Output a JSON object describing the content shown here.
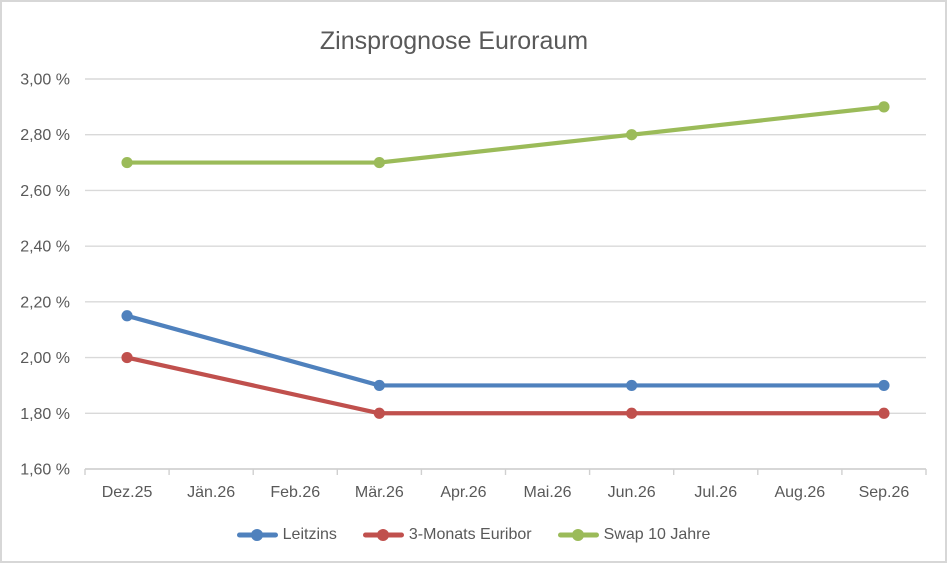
{
  "chart_data": {
    "type": "line",
    "title": "Zinsprognose Euroraum",
    "categories": [
      "Dez.25",
      "Jän.26",
      "Feb.26",
      "Mär.26",
      "Apr.26",
      "Mai.26",
      "Jun.26",
      "Jul.26",
      "Aug.26",
      "Sep.26"
    ],
    "series": [
      {
        "name": "Leitzins",
        "color": "#4F81BD",
        "values": [
          2.15,
          null,
          null,
          1.9,
          null,
          null,
          1.9,
          null,
          null,
          1.9
        ]
      },
      {
        "name": "3-Monats Euribor",
        "color": "#C0504D",
        "values": [
          2.0,
          null,
          null,
          1.8,
          null,
          null,
          1.8,
          null,
          null,
          1.8
        ]
      },
      {
        "name": "Swap 10 Jahre",
        "color": "#9BBB59",
        "values": [
          2.7,
          null,
          null,
          2.7,
          null,
          null,
          2.8,
          null,
          null,
          2.9
        ]
      }
    ],
    "y_axis": {
      "min": 1.6,
      "max": 3.0,
      "step": 0.2,
      "tick_labels": [
        "3,00 %",
        "2,80 %",
        "2,60 %",
        "2,40 %",
        "2,20 %",
        "2,00 %",
        "1,80 %",
        "1,60 %"
      ]
    },
    "legend_position": "bottom",
    "grid": true,
    "style": {
      "text_color": "#595959",
      "gridline_color": "#d9d9d9",
      "axis_color": "#d0d0d0",
      "background": "#ffffff"
    }
  }
}
